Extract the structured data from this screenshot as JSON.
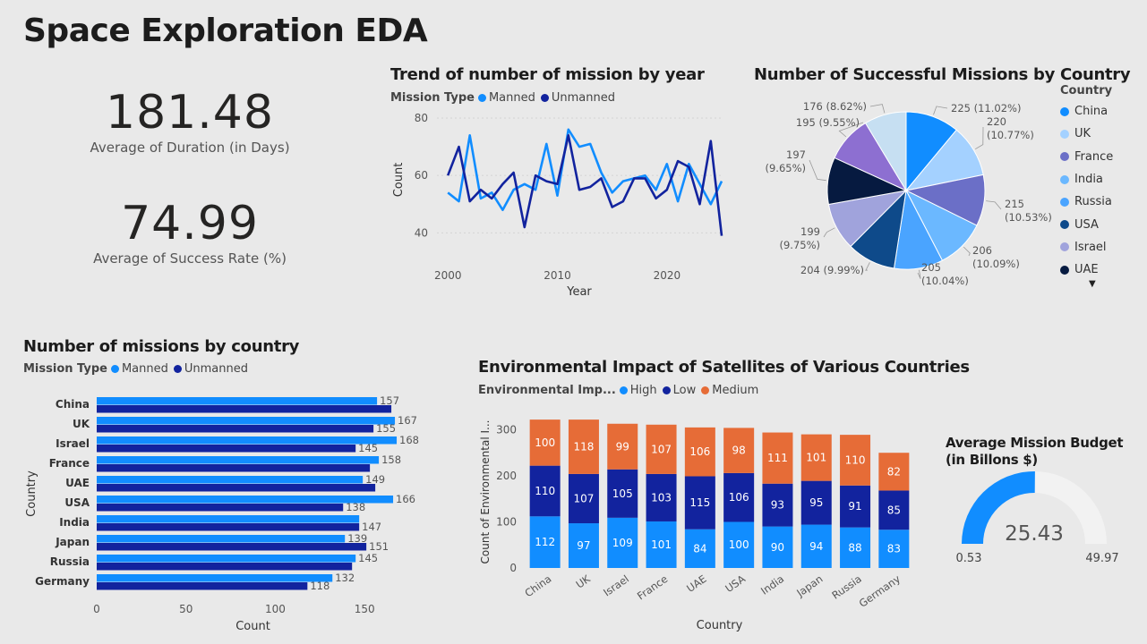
{
  "page": {
    "title": "Space Exploration EDA"
  },
  "kpis": {
    "duration": {
      "value": "181.48",
      "label": "Average of Duration (in Days)"
    },
    "success": {
      "value": "74.99",
      "label": "Average of Success Rate (%)"
    }
  },
  "colors": {
    "manned": "#118dff",
    "unmanned": "#12239e",
    "high": "#118dff",
    "low": "#12239e",
    "medium": "#e66c37",
    "gauge_fill": "#118dff",
    "gauge_track": "#f2f2f2"
  },
  "trend": {
    "title": "Trend of number of mission by year",
    "legend_title": "Mission Type",
    "legend": [
      "Manned",
      "Unmanned"
    ]
  },
  "pie": {
    "title": "Number of Successful Missions by Country",
    "legend_title": "Country",
    "legend": [
      "China",
      "UK",
      "France",
      "India",
      "Russia",
      "USA",
      "Israel",
      "UAE"
    ],
    "more_icon": "▼"
  },
  "bars": {
    "title": "Number of missions by country",
    "legend_title": "Mission Type",
    "legend": [
      "Manned",
      "Unmanned"
    ]
  },
  "env": {
    "title": "Environmental Impact of Satellites of Various Countries",
    "legend_title": "Environmental Imp...",
    "legend": [
      "High",
      "Low",
      "Medium"
    ]
  },
  "gauge": {
    "title_line1": "Average Mission Budget",
    "title_line2": "(in Billons $)",
    "value": "25.43",
    "min": "0.53",
    "max": "49.97"
  },
  "chart_data": [
    {
      "type": "line",
      "title": "Trend of number of mission by year",
      "xlabel": "Year",
      "ylabel": "Count",
      "xlim": [
        1999,
        2025
      ],
      "ylim": [
        37,
        80
      ],
      "xticks": [
        "2000",
        "2010",
        "2020"
      ],
      "yticks": [
        "40",
        "60",
        "80"
      ],
      "x": [
        2000,
        2001,
        2002,
        2003,
        2004,
        2005,
        2006,
        2007,
        2008,
        2009,
        2010,
        2011,
        2012,
        2013,
        2014,
        2015,
        2016,
        2017,
        2018,
        2019,
        2020,
        2021,
        2022,
        2023,
        2024,
        2025
      ],
      "series": [
        {
          "name": "Manned",
          "values": [
            54,
            51,
            74,
            52,
            54,
            48,
            55,
            57,
            55,
            71,
            53,
            76,
            70,
            71,
            61,
            54,
            58,
            59,
            60,
            55,
            64,
            51,
            64,
            57,
            50,
            58
          ]
        },
        {
          "name": "Unmanned",
          "values": [
            60,
            70,
            51,
            55,
            52,
            57,
            61,
            42,
            60,
            58,
            57,
            74,
            55,
            56,
            59,
            49,
            51,
            59,
            59,
            52,
            55,
            65,
            63,
            50,
            72,
            39
          ]
        }
      ]
    },
    {
      "type": "pie",
      "title": "Number of Successful Missions by Country",
      "slices": [
        {
          "label": "China",
          "value": 225,
          "text": "225 (11.02%)",
          "color": "#118dff"
        },
        {
          "label": "UK",
          "value": 220,
          "text": "220 (10.77%)",
          "color": "#a4d1ff"
        },
        {
          "label": "France",
          "value": 215,
          "text": "215 (10.53%)",
          "color": "#6b6fc7"
        },
        {
          "label": "India",
          "value": 206,
          "text": "206 (10.09%)",
          "color": "#6bb8ff"
        },
        {
          "label": "Russia",
          "value": 205,
          "text": "205 (10.04%)",
          "color": "#4aa4ff"
        },
        {
          "label": "USA",
          "value": 204,
          "text": "204 (9.99%)",
          "color": "#0e4a8a"
        },
        {
          "label": "Israel",
          "value": 199,
          "text": "199 (9.75%)",
          "color": "#a0a3dc"
        },
        {
          "label": "UAE",
          "value": 197,
          "text": "197 (9.65%)",
          "color": "#061a40"
        },
        {
          "label": "",
          "value": 195,
          "text": "195 (9.55%)",
          "color": "#8d6fd1"
        },
        {
          "label": "",
          "value": 176,
          "text": "176 (8.62%)",
          "color": "#c6dff2"
        }
      ]
    },
    {
      "type": "bar",
      "orientation": "horizontal",
      "title": "Number of missions by country",
      "xlabel": "Count",
      "ylabel": "Country",
      "xlim": [
        0,
        175
      ],
      "xticks": [
        "0",
        "50",
        "100",
        "150"
      ],
      "categories": [
        "China",
        "UK",
        "Israel",
        "France",
        "UAE",
        "USA",
        "India",
        "Japan",
        "Russia",
        "Germany"
      ],
      "series": [
        {
          "name": "Manned",
          "values": [
            157,
            167,
            168,
            158,
            149,
            166,
            147,
            139,
            145,
            132
          ],
          "labels": [
            "157",
            "167",
            "168",
            "158",
            "149",
            "166",
            "",
            "139",
            "145",
            "132"
          ]
        },
        {
          "name": "Unmanned",
          "values": [
            165,
            155,
            145,
            153,
            156,
            138,
            147,
            151,
            143,
            118
          ],
          "labels": [
            "",
            "155",
            "145",
            "",
            "",
            "138",
            "147",
            "151",
            "",
            "118"
          ]
        }
      ]
    },
    {
      "type": "bar",
      "stacked": true,
      "title": "Environmental Impact of Satellites of Various Countries",
      "xlabel": "Country",
      "ylabel": "Count of Environmental I...",
      "ylim": [
        0,
        330
      ],
      "yticks": [
        "0",
        "100",
        "200",
        "300"
      ],
      "categories": [
        "China",
        "UK",
        "Israel",
        "France",
        "UAE",
        "USA",
        "India",
        "Japan",
        "Russia",
        "Germany"
      ],
      "series": [
        {
          "name": "High",
          "values": [
            112,
            97,
            109,
            101,
            84,
            100,
            90,
            94,
            88,
            83
          ]
        },
        {
          "name": "Low",
          "values": [
            110,
            107,
            105,
            103,
            115,
            106,
            93,
            95,
            91,
            85
          ]
        },
        {
          "name": "Medium",
          "values": [
            100,
            118,
            99,
            107,
            106,
            98,
            111,
            101,
            110,
            82
          ]
        }
      ]
    },
    {
      "type": "gauge",
      "title": "Average Mission Budget (in Billons $)",
      "value": 25.43,
      "min": 0.53,
      "max": 49.97
    }
  ]
}
